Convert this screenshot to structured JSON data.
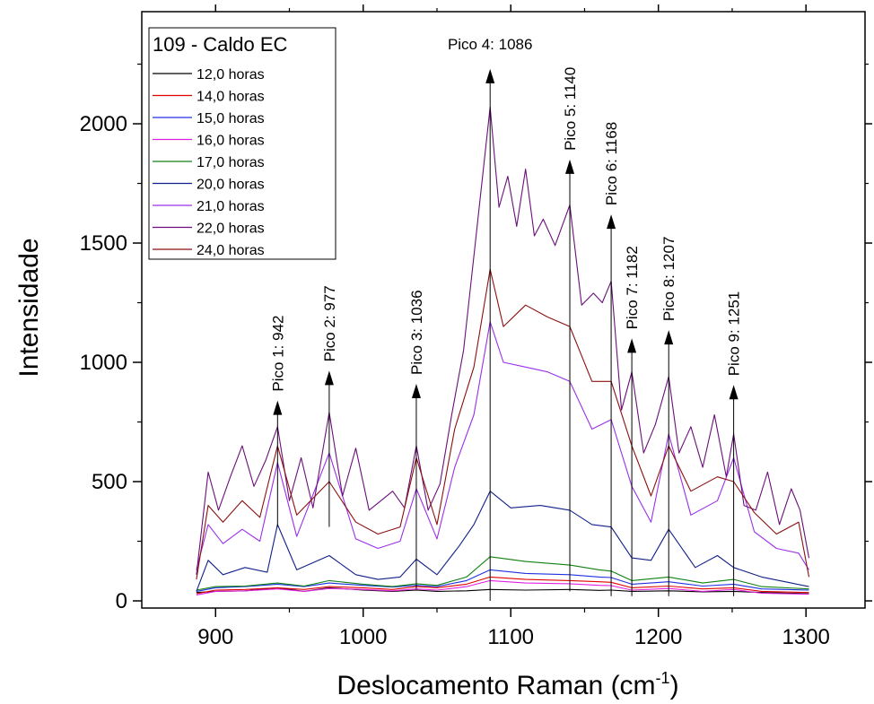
{
  "chart_data": {
    "type": "line",
    "title": "",
    "xlabel_text": "Deslocamento Raman (cm",
    "xlabel_sup": "-1",
    "xlabel_close": ")",
    "ylabel": "Intensidade",
    "xlim": [
      850,
      1340
    ],
    "ylim": [
      -30,
      2470
    ],
    "x_ticks": [
      900,
      1000,
      1100,
      1200,
      1300
    ],
    "y_ticks": [
      0,
      500,
      1000,
      1500,
      2000
    ],
    "x_tick_labels": [
      "900",
      "1000",
      "1100",
      "1200",
      "1300"
    ],
    "y_tick_labels": [
      "0",
      "500",
      "1000",
      "1500",
      "2000"
    ],
    "grid": false,
    "legend": {
      "title": "109 - Caldo EC",
      "placement": "top-left"
    },
    "peaks": [
      {
        "label": "Pico 1: 942",
        "x": 942,
        "y_base": 310,
        "y_tip": 840
      },
      {
        "label": "Pico 2: 977",
        "x": 977,
        "y_base": 310,
        "y_tip": 965
      },
      {
        "label": "Pico 3: 1036",
        "x": 1036,
        "y_base": 50,
        "y_tip": 910
      },
      {
        "label": "Pico 4: 1086",
        "x": 1086,
        "y_base": 0,
        "y_tip": 2230
      },
      {
        "label": "Pico 5: 1140",
        "x": 1140,
        "y_base": 40,
        "y_tip": 1850
      },
      {
        "label": "Pico 6: 1168",
        "x": 1168,
        "y_base": 20,
        "y_tip": 1620
      },
      {
        "label": "Pico 7: 1182",
        "x": 1182,
        "y_base": 20,
        "y_tip": 1100
      },
      {
        "label": "Pico 8: 1207",
        "x": 1207,
        "y_base": 20,
        "y_tip": 1135
      },
      {
        "label": "Pico 9: 1251",
        "x": 1251,
        "y_base": 20,
        "y_tip": 905
      }
    ],
    "series": [
      {
        "name": "12,0 horas",
        "color": "#000000",
        "x": [
          887,
          900,
          920,
          942,
          960,
          977,
          1000,
          1020,
          1036,
          1050,
          1070,
          1086,
          1110,
          1140,
          1160,
          1168,
          1182,
          1207,
          1230,
          1251,
          1270,
          1302
        ],
        "y": [
          35,
          40,
          42,
          55,
          40,
          55,
          45,
          40,
          45,
          40,
          42,
          48,
          45,
          48,
          44,
          45,
          40,
          42,
          38,
          40,
          35,
          30
        ]
      },
      {
        "name": "14,0 horas",
        "color": "#e00000",
        "x": [
          887,
          900,
          920,
          942,
          960,
          977,
          1000,
          1020,
          1036,
          1050,
          1070,
          1086,
          1110,
          1140,
          1160,
          1168,
          1182,
          1207,
          1230,
          1251,
          1270,
          1302
        ],
        "y": [
          30,
          45,
          48,
          55,
          48,
          60,
          55,
          48,
          60,
          55,
          70,
          100,
          90,
          85,
          80,
          78,
          55,
          62,
          50,
          55,
          40,
          35
        ]
      },
      {
        "name": "15,0 horas",
        "color": "#2030e0",
        "x": [
          887,
          900,
          920,
          942,
          960,
          977,
          1000,
          1020,
          1036,
          1050,
          1070,
          1086,
          1110,
          1140,
          1160,
          1168,
          1182,
          1207,
          1230,
          1251,
          1270,
          1302
        ],
        "y": [
          40,
          55,
          60,
          70,
          60,
          75,
          65,
          58,
          65,
          60,
          85,
          130,
          115,
          110,
          100,
          98,
          70,
          80,
          62,
          70,
          50,
          45
        ]
      },
      {
        "name": "16,0 horas",
        "color": "#e020e0",
        "x": [
          887,
          900,
          920,
          942,
          960,
          977,
          1000,
          1020,
          1036,
          1050,
          1070,
          1086,
          1110,
          1140,
          1160,
          1168,
          1182,
          1207,
          1230,
          1251,
          1270,
          1302
        ],
        "y": [
          25,
          40,
          42,
          50,
          40,
          52,
          48,
          42,
          50,
          45,
          60,
          85,
          75,
          72,
          65,
          64,
          45,
          52,
          40,
          48,
          32,
          28
        ]
      },
      {
        "name": "17,0 horas",
        "color": "#108010",
        "x": [
          887,
          900,
          920,
          942,
          960,
          977,
          1000,
          1020,
          1036,
          1050,
          1070,
          1086,
          1110,
          1140,
          1160,
          1168,
          1182,
          1207,
          1230,
          1251,
          1270,
          1302
        ],
        "y": [
          45,
          60,
          62,
          75,
          62,
          85,
          70,
          60,
          72,
          65,
          100,
          185,
          165,
          150,
          130,
          125,
          85,
          100,
          75,
          90,
          60,
          50
        ]
      },
      {
        "name": "20,0 horas",
        "color": "#10208a",
        "x": [
          887,
          895,
          905,
          920,
          935,
          942,
          955,
          977,
          995,
          1010,
          1025,
          1036,
          1050,
          1065,
          1075,
          1086,
          1100,
          1120,
          1140,
          1155,
          1168,
          1182,
          1195,
          1207,
          1225,
          1240,
          1251,
          1270,
          1290,
          1302
        ],
        "y": [
          40,
          170,
          110,
          140,
          120,
          320,
          130,
          190,
          110,
          90,
          100,
          175,
          110,
          230,
          320,
          460,
          390,
          400,
          380,
          320,
          310,
          180,
          170,
          300,
          140,
          190,
          140,
          100,
          75,
          60
        ]
      },
      {
        "name": "21,0 horas",
        "color": "#9a30e8",
        "x": [
          887,
          895,
          905,
          918,
          930,
          942,
          955,
          977,
          995,
          1010,
          1025,
          1036,
          1050,
          1062,
          1075,
          1086,
          1095,
          1110,
          1125,
          1140,
          1155,
          1168,
          1182,
          1195,
          1207,
          1222,
          1240,
          1251,
          1265,
          1280,
          1295,
          1302
        ],
        "y": [
          130,
          320,
          240,
          300,
          250,
          580,
          270,
          620,
          260,
          220,
          250,
          470,
          260,
          560,
          780,
          1170,
          1000,
          980,
          960,
          920,
          720,
          760,
          480,
          330,
          700,
          360,
          420,
          600,
          290,
          220,
          200,
          130
        ]
      },
      {
        "name": "22,0 horas",
        "color": "#6a0f7a",
        "x": [
          887,
          895,
          902,
          910,
          918,
          926,
          934,
          942,
          950,
          958,
          966,
          977,
          986,
          995,
          1004,
          1012,
          1020,
          1028,
          1036,
          1044,
          1052,
          1060,
          1068,
          1076,
          1086,
          1092,
          1098,
          1104,
          1110,
          1116,
          1122,
          1130,
          1140,
          1148,
          1156,
          1162,
          1168,
          1175,
          1182,
          1190,
          1198,
          1207,
          1214,
          1222,
          1230,
          1238,
          1246,
          1251,
          1258,
          1266,
          1274,
          1282,
          1290,
          1296,
          1302
        ],
        "y": [
          110,
          540,
          380,
          520,
          650,
          480,
          590,
          730,
          420,
          600,
          390,
          790,
          440,
          640,
          380,
          420,
          460,
          390,
          650,
          380,
          490,
          780,
          1050,
          1500,
          2070,
          1650,
          1780,
          1570,
          1810,
          1530,
          1600,
          1490,
          1660,
          1240,
          1290,
          1250,
          1340,
          800,
          960,
          620,
          740,
          940,
          620,
          730,
          560,
          780,
          520,
          700,
          400,
          380,
          540,
          320,
          470,
          380,
          180
        ]
      },
      {
        "name": "24,0 horas",
        "color": "#8a1010",
        "x": [
          887,
          895,
          905,
          918,
          930,
          942,
          955,
          977,
          995,
          1010,
          1025,
          1036,
          1050,
          1062,
          1075,
          1086,
          1095,
          1110,
          1125,
          1140,
          1155,
          1168,
          1182,
          1195,
          1207,
          1222,
          1240,
          1251,
          1265,
          1280,
          1295,
          1302
        ],
        "y": [
          90,
          400,
          330,
          420,
          350,
          650,
          360,
          500,
          330,
          280,
          310,
          600,
          320,
          720,
          980,
          1390,
          1150,
          1240,
          1190,
          1150,
          920,
          920,
          650,
          440,
          650,
          460,
          520,
          500,
          370,
          280,
          330,
          100
        ]
      }
    ]
  }
}
